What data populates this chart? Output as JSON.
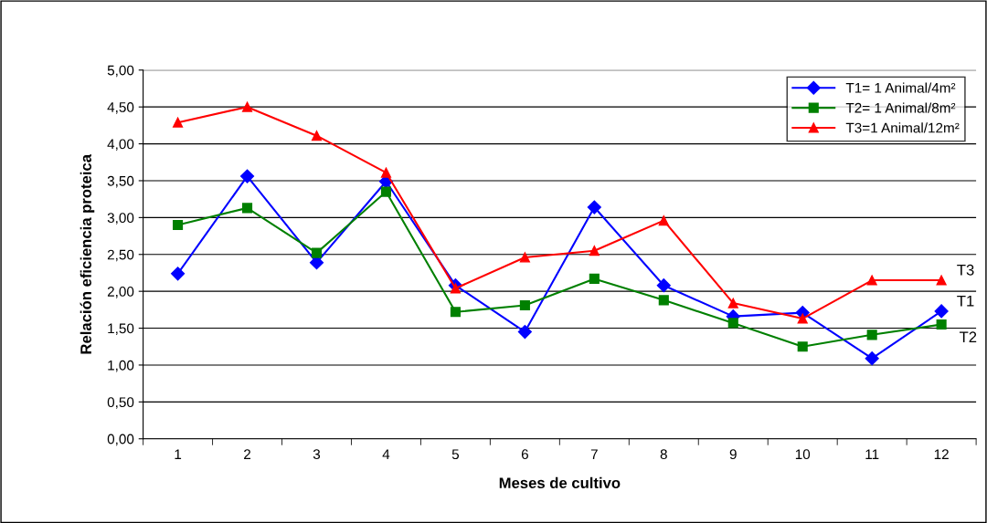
{
  "chart_data": {
    "type": "line",
    "xlabel": "Meses de cultivo",
    "ylabel": "Relación eficiencia proteica",
    "categories": [
      "1",
      "2",
      "3",
      "4",
      "5",
      "6",
      "7",
      "8",
      "9",
      "10",
      "11",
      "12"
    ],
    "series": [
      {
        "name": "T1= 1 Animal/4m²",
        "color": "#0000ff",
        "marker": "diamond",
        "values": [
          2.24,
          3.56,
          2.39,
          3.49,
          2.08,
          1.45,
          3.14,
          2.08,
          1.66,
          1.71,
          1.09,
          1.73
        ]
      },
      {
        "name": "T2= 1 Animal/8m²",
        "color": "#008000",
        "marker": "square",
        "values": [
          2.9,
          3.13,
          2.52,
          3.35,
          1.72,
          1.81,
          2.17,
          1.88,
          1.57,
          1.25,
          1.41,
          1.55
        ]
      },
      {
        "name": "T3=1 Animal/12m²",
        "color": "#ff0000",
        "marker": "triangle",
        "values": [
          4.29,
          4.5,
          4.11,
          3.61,
          2.04,
          2.46,
          2.55,
          2.96,
          1.84,
          1.63,
          2.15,
          2.15
        ]
      }
    ],
    "annotations": [
      {
        "text": "T3",
        "x": "12",
        "y": 2.15
      },
      {
        "text": "T1",
        "x": "12",
        "y": 1.73
      },
      {
        "text": "T2",
        "x": "12",
        "y": 1.55
      }
    ],
    "ylim": [
      0,
      5
    ],
    "yticks": [
      {
        "value": 0,
        "label": "0,00"
      },
      {
        "value": 0.5,
        "label": "0,50"
      },
      {
        "value": 1,
        "label": "1,00"
      },
      {
        "value": 1.5,
        "label": "1,50"
      },
      {
        "value": 2,
        "label": "2,00"
      },
      {
        "value": 2.5,
        "label": "2,50"
      },
      {
        "value": 3,
        "label": "3,00"
      },
      {
        "value": 3.5,
        "label": "3,50"
      },
      {
        "value": 4,
        "label": "4,00"
      },
      {
        "value": 4.5,
        "label": "4,50"
      },
      {
        "value": 5,
        "label": "5,00"
      }
    ],
    "grid": "y",
    "legend": "top right",
    "line_style": "solid"
  }
}
